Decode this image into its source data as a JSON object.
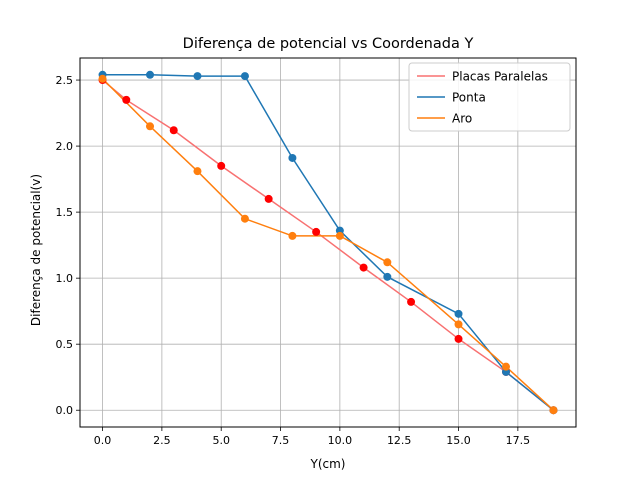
{
  "chart_data": {
    "type": "line",
    "title": "Diferença de potencial vs Coordenada Y",
    "xlabel": "Y(cm)",
    "ylabel": "Diferença de potencial(v)",
    "xlim": [
      -0.95,
      19.95
    ],
    "ylim": [
      -0.127,
      2.667
    ],
    "xticks": [
      0,
      2.5,
      5,
      7.5,
      10,
      12.5,
      15,
      17.5
    ],
    "xtick_labels": [
      "0.0",
      "2.5",
      "5.0",
      "7.5",
      "10.0",
      "12.5",
      "15.0",
      "17.5"
    ],
    "yticks": [
      0,
      0.5,
      1,
      1.5,
      2,
      2.5
    ],
    "ytick_labels": [
      "0.0",
      "0.5",
      "1.0",
      "1.5",
      "2.0",
      "2.5"
    ],
    "grid": true,
    "legend_position": "top-right",
    "series": [
      {
        "name": "Placas Paralelas",
        "line_color": "#f87171",
        "marker_color": "#ff0000",
        "x": [
          0,
          1,
          3,
          5,
          7,
          9,
          11,
          13,
          15,
          17,
          19
        ],
        "y": [
          2.5,
          2.35,
          2.12,
          1.85,
          1.6,
          1.35,
          1.08,
          0.82,
          0.54,
          0.29,
          0
        ]
      },
      {
        "name": "Ponta",
        "line_color": "#1f77b4",
        "marker_color": "#1f77b4",
        "x": [
          0,
          2,
          4,
          6,
          8,
          10,
          12,
          15,
          17,
          19
        ],
        "y": [
          2.54,
          2.54,
          2.53,
          2.53,
          1.91,
          1.36,
          1.01,
          0.73,
          0.29,
          0
        ]
      },
      {
        "name": "Aro",
        "line_color": "#ff7f0e",
        "marker_color": "#ff7f0e",
        "x": [
          0,
          2,
          4,
          6,
          8,
          10,
          12,
          15,
          17,
          19
        ],
        "y": [
          2.51,
          2.15,
          1.81,
          1.45,
          1.32,
          1.32,
          1.12,
          0.65,
          0.33,
          0
        ]
      }
    ]
  }
}
